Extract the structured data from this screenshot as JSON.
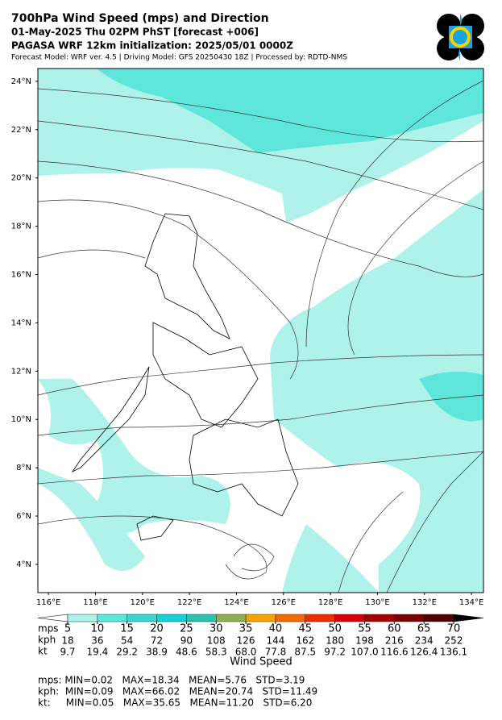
{
  "header": {
    "title": "700hPa Wind Speed (mps) and Direction",
    "date": "01-May-2025 Thu 02PM PhST [forecast +006]",
    "run": "PAGASA WRF 12km initialization: 2025/05/01 0000Z",
    "info": "Forecast Model: WRF ver. 4.5 | Driving Model: GFS 20250430 18Z | Processed by: RDTD-NMS"
  },
  "map": {
    "lat_range": [
      2.83,
      24.53
    ],
    "lon_range": [
      115.55,
      134.51
    ],
    "lat_ticks": [
      {
        "value": 4,
        "label": "4°N"
      },
      {
        "value": 6,
        "label": "6°N"
      },
      {
        "value": 8,
        "label": "8°N"
      },
      {
        "value": 10,
        "label": "10°N"
      },
      {
        "value": 12,
        "label": "12°N"
      },
      {
        "value": 14,
        "label": "14°N"
      },
      {
        "value": 16,
        "label": "16°N"
      },
      {
        "value": 18,
        "label": "18°N"
      },
      {
        "value": 20,
        "label": "20°N"
      },
      {
        "value": 22,
        "label": "22°N"
      },
      {
        "value": 24,
        "label": "24°N"
      }
    ],
    "lon_ticks": [
      {
        "value": 116,
        "label": "116°E"
      },
      {
        "value": 118,
        "label": "118°E"
      },
      {
        "value": 120,
        "label": "120°E"
      },
      {
        "value": 122,
        "label": "122°E"
      },
      {
        "value": 124,
        "label": "124°E"
      },
      {
        "value": 126,
        "label": "126°E"
      },
      {
        "value": 128,
        "label": "128°E"
      },
      {
        "value": 130,
        "label": "130°E"
      },
      {
        "value": 132,
        "label": "132°E"
      },
      {
        "value": 134,
        "label": "134°E"
      }
    ]
  },
  "colorbar": {
    "label": "Wind Speed",
    "row_labels": [
      "mps",
      "kph",
      "kt"
    ],
    "levels": [
      5,
      10,
      15,
      20,
      25,
      30,
      35,
      40,
      45,
      50,
      55,
      60,
      65,
      70
    ],
    "kph": [
      "18",
      "36",
      "54",
      "72",
      "90",
      "108",
      "126",
      "144",
      "162",
      "180",
      "198",
      "216",
      "234",
      "252"
    ],
    "kt": [
      "9.7",
      "19.4",
      "29.2",
      "38.9",
      "48.6",
      "58.3",
      "68.0",
      "77.8",
      "87.5",
      "97.2",
      "107.0",
      "116.6",
      "126.4",
      "136.1"
    ],
    "colors": [
      "#aff2ea",
      "#5fe6da",
      "#3ad8d0",
      "#17d0d4",
      "#2bc2b0",
      "#8fae55",
      "#f3a400",
      "#f26a00",
      "#f22a00",
      "#d40000",
      "#a60000",
      "#7c0000",
      "#520000"
    ],
    "under_color": "#ffffff",
    "over_color": "#000000"
  },
  "stats": [
    "mps: MIN=0.02   MAX=18.34   MEAN=5.76   STD=3.19",
    "kph:  MIN=0.09   MAX=66.02   MEAN=20.74   STD=11.49",
    "kt:     MIN=0.05   MAX=35.65   MEAN=11.20   STD=6.20"
  ]
}
